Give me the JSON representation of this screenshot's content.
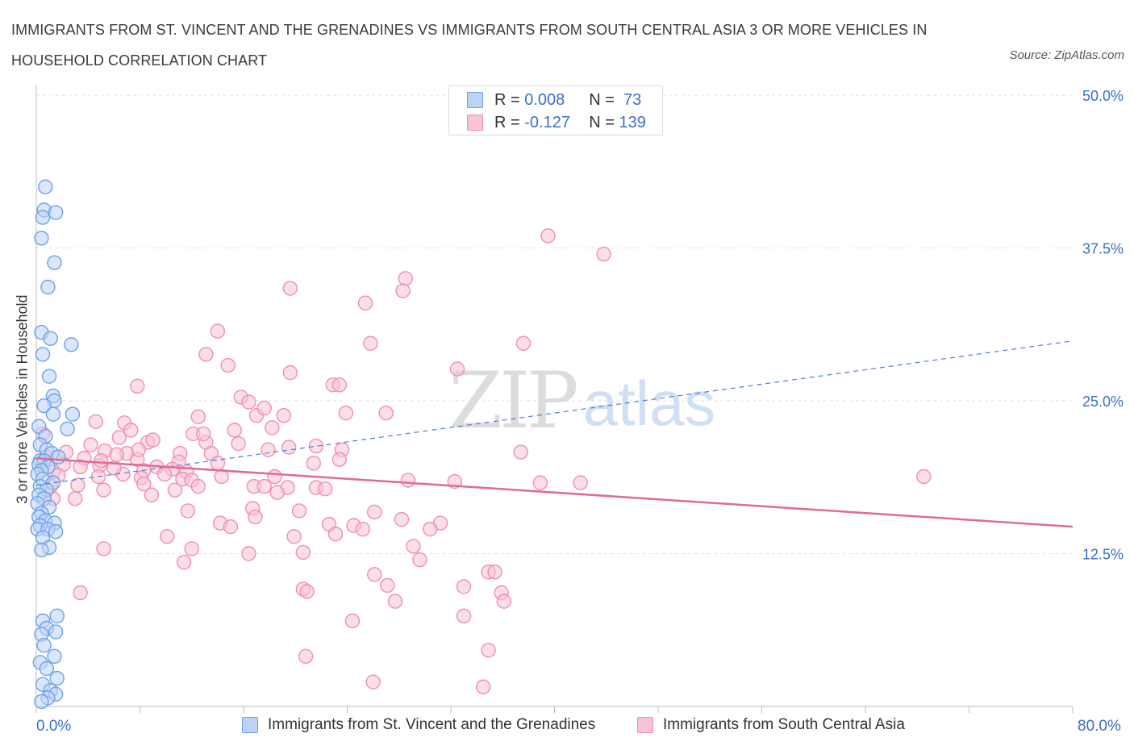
{
  "title": "IMMIGRANTS FROM ST. VINCENT AND THE GRENADINES VS IMMIGRANTS FROM SOUTH CENTRAL ASIA 3 OR MORE VEHICLES IN HOUSEHOLD CORRELATION CHART",
  "source": "Source: ZipAtlas.com",
  "watermark": {
    "zip": "ZIP",
    "atlas": "atlas"
  },
  "colors": {
    "blue": "#6fa0e8",
    "blue_fill": "#bcd3f5",
    "pink": "#ef8fb0",
    "pink_fill": "#f7c3d5",
    "pink_line": "#e06a95",
    "blue_line": "#4a7fd6",
    "axis_text": "#3b6fc5"
  },
  "legend_top": {
    "rows": [
      {
        "r_label": "R = ",
        "r_value": "0.008",
        "n_label": "N = ",
        "n_value": " 73",
        "color": "blue"
      },
      {
        "r_label": "R = ",
        "r_value": "-0.127",
        "n_label": "N = ",
        "n_value": "139",
        "color": "pink"
      }
    ]
  },
  "chart_data": {
    "type": "scatter",
    "title": "IMMIGRANTS FROM ST. VINCENT AND THE GRENADINES VS IMMIGRANTS FROM SOUTH CENTRAL ASIA 3 OR MORE VEHICLES IN HOUSEHOLD CORRELATION CHART",
    "ylabel": "3 or more Vehicles in Household",
    "xlabel": "",
    "xlim": [
      0,
      80
    ],
    "ylim": [
      0,
      50
    ],
    "x_tick_labels": [
      "0.0%",
      "80.0%"
    ],
    "y_tick_labels": [
      "12.5%",
      "25.0%",
      "37.5%",
      "50.0%"
    ],
    "y_ticks": [
      12.5,
      25,
      37.5,
      50
    ],
    "grid": true,
    "legend_position": "bottom",
    "series": [
      {
        "name": "Immigrants from St. Vincent and the Grenadines",
        "color": "blue",
        "r": 0.008,
        "n": 73,
        "trend": {
          "x": [
            0,
            80
          ],
          "y": [
            18.1,
            29.9
          ],
          "style": "dashed"
        },
        "points": [
          [
            0.7,
            42.5
          ],
          [
            0.6,
            40.6
          ],
          [
            1.5,
            40.4
          ],
          [
            0.5,
            40.0
          ],
          [
            0.4,
            38.3
          ],
          [
            1.4,
            36.3
          ],
          [
            0.9,
            34.3
          ],
          [
            0.4,
            30.6
          ],
          [
            1.1,
            30.1
          ],
          [
            2.7,
            29.6
          ],
          [
            0.5,
            28.8
          ],
          [
            1.0,
            27.0
          ],
          [
            1.3,
            25.4
          ],
          [
            1.4,
            25.0
          ],
          [
            0.6,
            24.6
          ],
          [
            1.3,
            23.9
          ],
          [
            2.8,
            23.9
          ],
          [
            2.4,
            22.7
          ],
          [
            0.2,
            22.9
          ],
          [
            0.7,
            22.1
          ],
          [
            0.3,
            21.4
          ],
          [
            0.8,
            21.0
          ],
          [
            1.2,
            20.7
          ],
          [
            1.7,
            20.4
          ],
          [
            0.3,
            20.1
          ],
          [
            0.6,
            20.1
          ],
          [
            0.2,
            19.8
          ],
          [
            0.9,
            19.6
          ],
          [
            0.4,
            19.3
          ],
          [
            0.1,
            19.0
          ],
          [
            0.5,
            18.6
          ],
          [
            1.3,
            18.3
          ],
          [
            0.3,
            18.0
          ],
          [
            0.8,
            17.7
          ],
          [
            0.2,
            17.3
          ],
          [
            0.6,
            17.0
          ],
          [
            0.1,
            16.6
          ],
          [
            1.0,
            16.3
          ],
          [
            0.4,
            15.8
          ],
          [
            0.2,
            15.5
          ],
          [
            0.7,
            15.2
          ],
          [
            1.4,
            15.0
          ],
          [
            0.3,
            14.8
          ],
          [
            0.1,
            14.5
          ],
          [
            0.9,
            14.5
          ],
          [
            1.5,
            14.3
          ],
          [
            0.5,
            13.8
          ],
          [
            1.0,
            13.0
          ],
          [
            0.4,
            12.8
          ],
          [
            1.6,
            7.4
          ],
          [
            0.5,
            7.0
          ],
          [
            0.8,
            6.4
          ],
          [
            1.5,
            6.1
          ],
          [
            0.4,
            5.9
          ],
          [
            0.6,
            5.0
          ],
          [
            1.4,
            4.1
          ],
          [
            0.3,
            3.6
          ],
          [
            0.8,
            3.1
          ],
          [
            1.6,
            2.3
          ],
          [
            0.5,
            1.8
          ],
          [
            1.1,
            1.3
          ],
          [
            1.5,
            1.0
          ],
          [
            0.9,
            0.7
          ],
          [
            0.4,
            0.4
          ]
        ]
      },
      {
        "name": "Immigrants from South Central Asia",
        "color": "pink",
        "r": -0.127,
        "n": 139,
        "trend": {
          "x": [
            0,
            80
          ],
          "y": [
            20.3,
            14.7
          ],
          "style": "solid"
        },
        "points": [
          [
            39.5,
            38.5
          ],
          [
            43.8,
            37.0
          ],
          [
            28.5,
            35.0
          ],
          [
            19.6,
            34.2
          ],
          [
            25.4,
            33.0
          ],
          [
            28.3,
            34.0
          ],
          [
            14.0,
            30.7
          ],
          [
            25.8,
            29.7
          ],
          [
            37.6,
            29.7
          ],
          [
            13.1,
            28.8
          ],
          [
            14.8,
            27.9
          ],
          [
            32.5,
            27.6
          ],
          [
            19.6,
            27.3
          ],
          [
            22.9,
            26.3
          ],
          [
            23.4,
            26.3
          ],
          [
            7.8,
            26.2
          ],
          [
            15.8,
            25.3
          ],
          [
            16.4,
            24.9
          ],
          [
            12.5,
            23.7
          ],
          [
            17.0,
            23.8
          ],
          [
            19.1,
            23.8
          ],
          [
            4.6,
            23.3
          ],
          [
            6.8,
            23.2
          ],
          [
            7.3,
            22.6
          ],
          [
            15.3,
            22.6
          ],
          [
            12.1,
            22.3
          ],
          [
            0.5,
            22.3
          ],
          [
            6.4,
            22.0
          ],
          [
            13.1,
            21.6
          ],
          [
            15.6,
            21.5
          ],
          [
            4.2,
            21.4
          ],
          [
            8.6,
            21.6
          ],
          [
            19.5,
            21.2
          ],
          [
            21.6,
            21.3
          ],
          [
            17.9,
            21.0
          ],
          [
            23.6,
            21.0
          ],
          [
            5.3,
            20.9
          ],
          [
            7.0,
            20.7
          ],
          [
            2.3,
            20.8
          ],
          [
            6.2,
            20.6
          ],
          [
            11.1,
            20.7
          ],
          [
            13.5,
            20.7
          ],
          [
            37.4,
            20.8
          ],
          [
            0.8,
            20.4
          ],
          [
            3.7,
            20.3
          ],
          [
            7.8,
            20.2
          ],
          [
            11.0,
            20.0
          ],
          [
            14.0,
            19.9
          ],
          [
            21.4,
            19.9
          ],
          [
            23.4,
            20.2
          ],
          [
            2.1,
            19.8
          ],
          [
            4.9,
            19.7
          ],
          [
            3.4,
            19.6
          ],
          [
            9.3,
            19.6
          ],
          [
            10.5,
            19.4
          ],
          [
            8.3,
            19.3
          ],
          [
            6.7,
            19.0
          ],
          [
            11.6,
            19.2
          ],
          [
            1.3,
            19.2
          ],
          [
            4.8,
            18.8
          ],
          [
            9.9,
            19.0
          ],
          [
            1.7,
            18.9
          ],
          [
            8.1,
            18.7
          ],
          [
            14.3,
            18.8
          ],
          [
            18.4,
            18.8
          ],
          [
            11.3,
            18.6
          ],
          [
            12.0,
            18.5
          ],
          [
            28.7,
            18.5
          ],
          [
            32.3,
            18.4
          ],
          [
            38.9,
            18.3
          ],
          [
            42.0,
            18.3
          ],
          [
            68.5,
            18.8
          ],
          [
            8.3,
            18.2
          ],
          [
            3.2,
            18.1
          ],
          [
            1.1,
            18.0
          ],
          [
            12.5,
            18.0
          ],
          [
            16.8,
            18.0
          ],
          [
            17.6,
            18.0
          ],
          [
            19.4,
            17.9
          ],
          [
            21.6,
            17.9
          ],
          [
            22.3,
            17.8
          ],
          [
            5.2,
            17.7
          ],
          [
            10.7,
            17.7
          ],
          [
            18.6,
            17.5
          ],
          [
            8.9,
            17.3
          ],
          [
            1.3,
            17.0
          ],
          [
            16.7,
            16.2
          ],
          [
            20.3,
            16.0
          ],
          [
            11.7,
            16.0
          ],
          [
            26.1,
            15.9
          ],
          [
            16.9,
            15.5
          ],
          [
            28.2,
            15.3
          ],
          [
            14.2,
            15.0
          ],
          [
            31.2,
            15.0
          ],
          [
            22.6,
            14.9
          ],
          [
            24.5,
            14.8
          ],
          [
            25.2,
            14.5
          ],
          [
            15.0,
            14.7
          ],
          [
            30.4,
            14.5
          ],
          [
            23.1,
            14.1
          ],
          [
            19.9,
            13.9
          ],
          [
            10.1,
            13.9
          ],
          [
            29.1,
            13.1
          ],
          [
            5.2,
            12.9
          ],
          [
            12.0,
            12.9
          ],
          [
            20.6,
            12.6
          ],
          [
            16.4,
            12.5
          ],
          [
            29.6,
            12.0
          ],
          [
            11.4,
            11.8
          ],
          [
            34.9,
            11.0
          ],
          [
            35.4,
            11.0
          ],
          [
            26.1,
            10.8
          ],
          [
            27.1,
            9.9
          ],
          [
            20.6,
            9.6
          ],
          [
            20.9,
            9.4
          ],
          [
            33.0,
            9.8
          ],
          [
            35.9,
            9.3
          ],
          [
            3.4,
            9.3
          ],
          [
            27.7,
            8.6
          ],
          [
            36.1,
            8.6
          ],
          [
            33.0,
            7.4
          ],
          [
            24.4,
            7.0
          ],
          [
            34.9,
            4.6
          ],
          [
            20.8,
            4.1
          ],
          [
            34.5,
            1.6
          ],
          [
            26.0,
            2.0
          ],
          [
            5.0,
            20.1
          ],
          [
            3.0,
            17.0
          ],
          [
            9.0,
            21.8
          ],
          [
            12.9,
            22.3
          ],
          [
            6.0,
            19.5
          ],
          [
            23.9,
            24.0
          ],
          [
            27.0,
            24.0
          ],
          [
            17.6,
            24.4
          ],
          [
            18.2,
            22.8
          ],
          [
            7.9,
            21.0
          ]
        ]
      }
    ]
  },
  "bottom_legend": [
    {
      "label": "Immigrants from St. Vincent and the Grenadines",
      "color": "blue"
    },
    {
      "label": "Immigrants from South Central Asia",
      "color": "pink"
    }
  ]
}
